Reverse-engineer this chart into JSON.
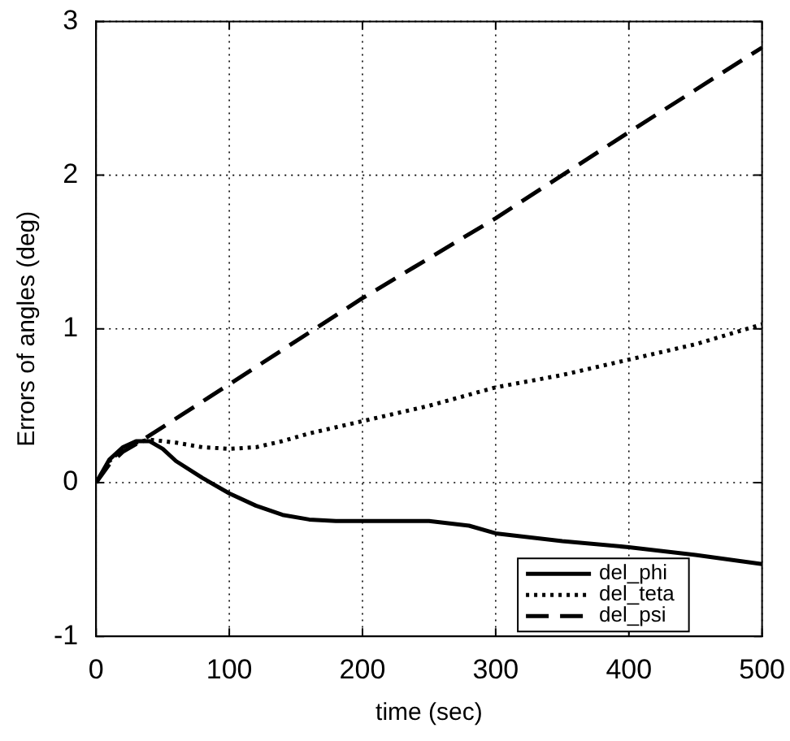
{
  "chart_data": {
    "type": "line",
    "xlabel": "time (sec)",
    "ylabel": "Errors of angles (deg)",
    "xlim": [
      0,
      500
    ],
    "ylim": [
      -1,
      3
    ],
    "xticks": [
      0,
      100,
      200,
      300,
      400,
      500
    ],
    "yticks": [
      -1,
      0,
      1,
      2,
      3
    ],
    "grid": true,
    "legend": "bottom right",
    "marker": "none",
    "series": [
      {
        "name": "del_phi",
        "color": "#000000",
        "line_style": "solid",
        "x": [
          0,
          10,
          20,
          30,
          40,
          50,
          60,
          80,
          100,
          120,
          140,
          160,
          180,
          200,
          250,
          280,
          300,
          350,
          400,
          450,
          500
        ],
        "values": [
          0,
          0.15,
          0.23,
          0.27,
          0.27,
          0.22,
          0.14,
          0.03,
          -0.07,
          -0.15,
          -0.21,
          -0.24,
          -0.25,
          -0.25,
          -0.25,
          -0.28,
          -0.33,
          -0.38,
          -0.42,
          -0.47,
          -0.53
        ]
      },
      {
        "name": "del_teta",
        "color": "#000000",
        "line_style": "dotted",
        "x": [
          0,
          10,
          20,
          30,
          40,
          60,
          80,
          100,
          120,
          140,
          160,
          200,
          250,
          300,
          350,
          400,
          450,
          500
        ],
        "values": [
          0,
          0.14,
          0.22,
          0.26,
          0.28,
          0.26,
          0.23,
          0.22,
          0.23,
          0.27,
          0.32,
          0.4,
          0.5,
          0.62,
          0.7,
          0.8,
          0.9,
          1.03
        ]
      },
      {
        "name": "del_psi",
        "color": "#000000",
        "line_style": "dashed",
        "x": [
          0,
          10,
          20,
          30,
          100,
          200,
          300,
          400,
          500
        ],
        "values": [
          0,
          0.12,
          0.2,
          0.25,
          0.64,
          1.2,
          1.72,
          2.28,
          2.83
        ]
      }
    ]
  }
}
